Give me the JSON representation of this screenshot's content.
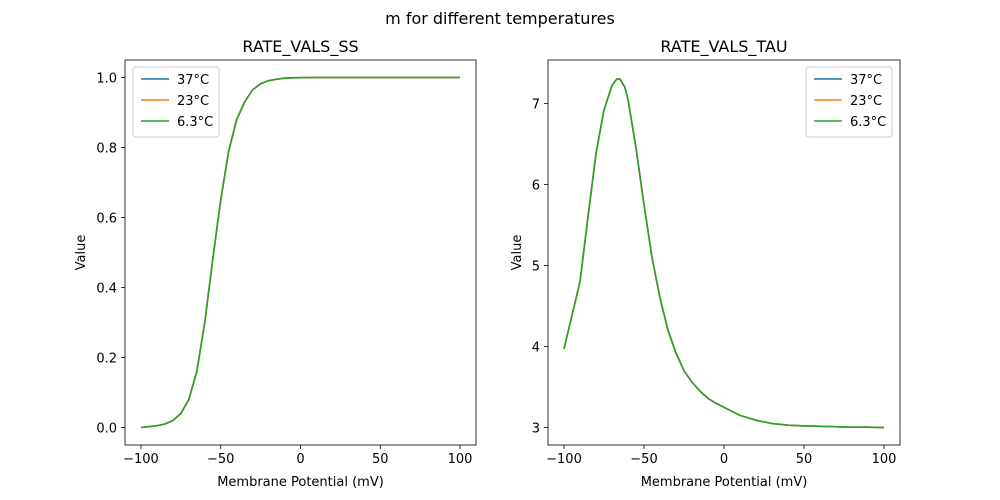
{
  "figure": {
    "title": "m for different temperatures"
  },
  "chart_data": [
    {
      "type": "line",
      "title": "RATE_VALS_SS",
      "xlabel": "Membrane Potential (mV)",
      "ylabel": "Value",
      "xlim": [
        -110,
        110
      ],
      "ylim": [
        -0.05,
        1.05
      ],
      "xticks": [
        -100,
        -50,
        0,
        50,
        100
      ],
      "yticks": [
        0.0,
        0.2,
        0.4,
        0.6,
        0.8,
        1.0
      ],
      "ytick_labels": [
        "0.0",
        "0.2",
        "0.4",
        "0.6",
        "0.8",
        "1.0"
      ],
      "grid": false,
      "legend": "upper-left",
      "x": [
        -100,
        -90,
        -85,
        -80,
        -75,
        -70,
        -65,
        -60,
        -55,
        -50,
        -45,
        -40,
        -35,
        -30,
        -25,
        -20,
        -15,
        -10,
        -5,
        0,
        10,
        20,
        30,
        40,
        50,
        60,
        70,
        80,
        90,
        100
      ],
      "series": [
        {
          "name": "37°C",
          "color": "#1f77b4",
          "values": [
            0.0,
            0.005,
            0.01,
            0.02,
            0.04,
            0.08,
            0.16,
            0.3,
            0.48,
            0.65,
            0.79,
            0.88,
            0.93,
            0.965,
            0.982,
            0.991,
            0.995,
            0.998,
            0.999,
            0.9995,
            1.0,
            1.0,
            1.0,
            1.0,
            1.0,
            1.0,
            1.0,
            1.0,
            1.0,
            1.0
          ]
        },
        {
          "name": "23°C",
          "color": "#ff7f0e",
          "values": [
            0.0,
            0.005,
            0.01,
            0.02,
            0.04,
            0.08,
            0.16,
            0.3,
            0.48,
            0.65,
            0.79,
            0.88,
            0.93,
            0.965,
            0.982,
            0.991,
            0.995,
            0.998,
            0.999,
            0.9995,
            1.0,
            1.0,
            1.0,
            1.0,
            1.0,
            1.0,
            1.0,
            1.0,
            1.0,
            1.0
          ]
        },
        {
          "name": "6.3°C",
          "color": "#2ca02c",
          "values": [
            0.0,
            0.005,
            0.01,
            0.02,
            0.04,
            0.08,
            0.16,
            0.3,
            0.48,
            0.65,
            0.79,
            0.88,
            0.93,
            0.965,
            0.982,
            0.991,
            0.995,
            0.998,
            0.999,
            0.9995,
            1.0,
            1.0,
            1.0,
            1.0,
            1.0,
            1.0,
            1.0,
            1.0,
            1.0,
            1.0
          ]
        }
      ]
    },
    {
      "type": "line",
      "title": "RATE_VALS_TAU",
      "xlabel": "Membrane Potential (mV)",
      "ylabel": "Value",
      "xlim": [
        -110,
        110
      ],
      "ylim": [
        2.785,
        7.535
      ],
      "xticks": [
        -100,
        -50,
        0,
        50,
        100
      ],
      "yticks": [
        3,
        4,
        5,
        6,
        7
      ],
      "ytick_labels": [
        "3",
        "4",
        "5",
        "6",
        "7"
      ],
      "grid": false,
      "legend": "upper-right",
      "x": [
        -100,
        -90,
        -85,
        -80,
        -75,
        -70,
        -67,
        -65,
        -62,
        -60,
        -55,
        -50,
        -45,
        -40,
        -35,
        -30,
        -25,
        -20,
        -15,
        -10,
        -5,
        0,
        10,
        20,
        30,
        40,
        50,
        60,
        70,
        80,
        90,
        100
      ],
      "series": [
        {
          "name": "37°C",
          "color": "#1f77b4",
          "values": [
            3.97,
            4.8,
            5.6,
            6.38,
            6.92,
            7.22,
            7.3,
            7.3,
            7.2,
            7.05,
            6.45,
            5.75,
            5.1,
            4.6,
            4.2,
            3.92,
            3.7,
            3.56,
            3.45,
            3.36,
            3.3,
            3.25,
            3.15,
            3.09,
            3.05,
            3.03,
            3.02,
            3.015,
            3.01,
            3.005,
            3.005,
            3.0
          ]
        },
        {
          "name": "23°C",
          "color": "#ff7f0e",
          "values": [
            3.97,
            4.8,
            5.6,
            6.38,
            6.92,
            7.22,
            7.3,
            7.3,
            7.2,
            7.05,
            6.45,
            5.75,
            5.1,
            4.6,
            4.2,
            3.92,
            3.7,
            3.56,
            3.45,
            3.36,
            3.3,
            3.25,
            3.15,
            3.09,
            3.05,
            3.03,
            3.02,
            3.015,
            3.01,
            3.005,
            3.005,
            3.0
          ]
        },
        {
          "name": "6.3°C",
          "color": "#2ca02c",
          "values": [
            3.97,
            4.8,
            5.6,
            6.38,
            6.92,
            7.22,
            7.3,
            7.3,
            7.2,
            7.05,
            6.45,
            5.75,
            5.1,
            4.6,
            4.2,
            3.92,
            3.7,
            3.56,
            3.45,
            3.36,
            3.3,
            3.25,
            3.15,
            3.09,
            3.05,
            3.03,
            3.02,
            3.015,
            3.01,
            3.005,
            3.005,
            3.0
          ]
        }
      ]
    }
  ]
}
